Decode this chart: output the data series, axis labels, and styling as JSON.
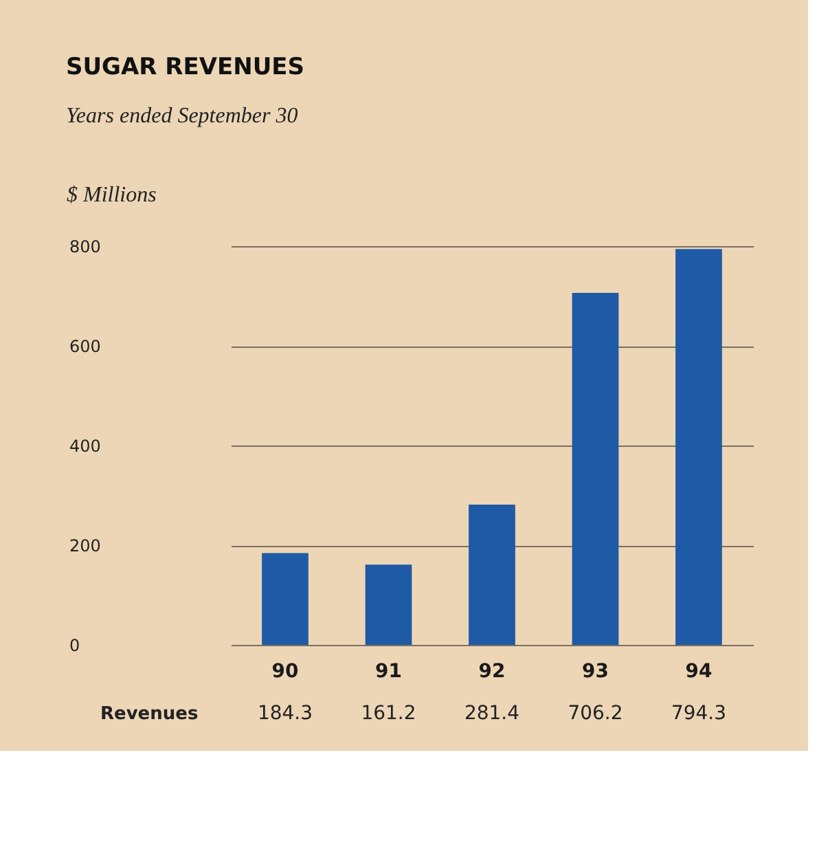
{
  "chart_data": {
    "type": "bar",
    "title": "SUGAR REVENUES",
    "subtitle": "Years ended September 30",
    "ylabel": "$ Millions",
    "categories": [
      "90",
      "91",
      "92",
      "93",
      "94"
    ],
    "series": [
      {
        "color": "#1f5aa6",
        "values": [
          184.3,
          161.2,
          281.4,
          706.2,
          794.3
        ]
      }
    ],
    "annotations": [
      "Revenues"
    ],
    "ylim": [
      0,
      800
    ],
    "yticks": [
      0,
      200,
      400,
      600,
      800
    ],
    "grid": "y",
    "data_labels": true,
    "legend": false
  }
}
